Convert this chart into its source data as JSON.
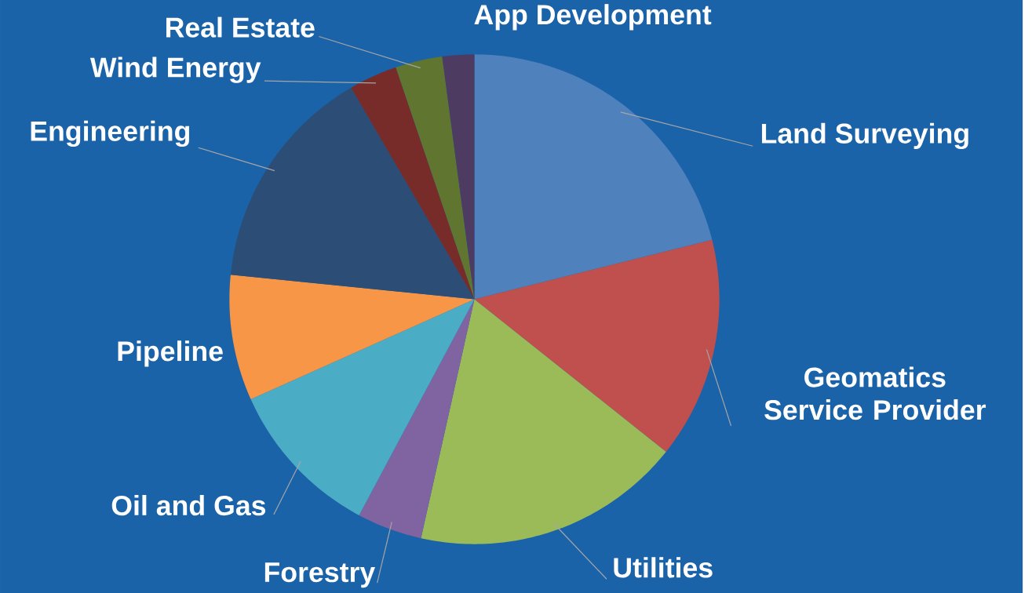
{
  "chart_data": {
    "type": "pie",
    "categories": [
      "Land Surveying",
      "Geomatics Service Provider",
      "Utilities",
      "Forestry",
      "Oil and Gas",
      "Pipeline",
      "Engineering",
      "Wind Energy",
      "Real Estate",
      "App Development"
    ],
    "values": [
      21.1,
      14.6,
      17.8,
      4.3,
      10.5,
      8.3,
      15.0,
      3.2,
      3.1,
      2.1
    ],
    "colors": [
      "#4f81bd",
      "#c0504d",
      "#9bbb59",
      "#8064a2",
      "#4bacc6",
      "#f79646",
      "#2c4d75",
      "#772c2a",
      "#5f7530",
      "#4d3b62"
    ]
  }
}
